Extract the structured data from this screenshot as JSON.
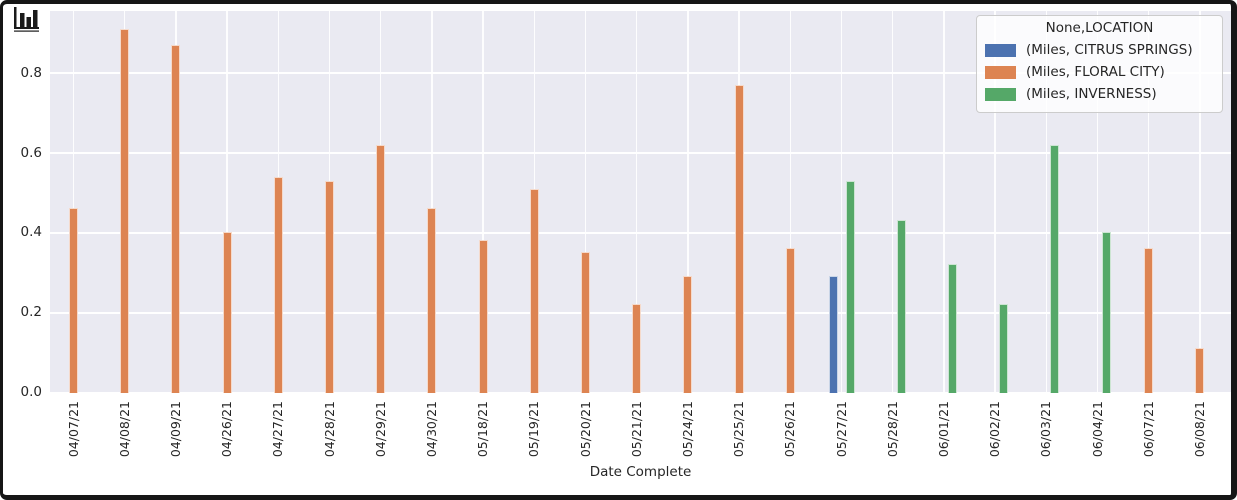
{
  "ui": {
    "top_left_icon": "bar-chart-icon",
    "frame_color": "#161616",
    "plot_bg": "#EAEAF2",
    "grid_color": "#FFFFFF",
    "tick_text_color": "#262626"
  },
  "chart_data": {
    "type": "bar",
    "title": "",
    "xlabel": "Date Complete",
    "ylabel": "",
    "ylim": [
      0,
      0.955
    ],
    "yticks": [
      0,
      0.2,
      0.4,
      0.6,
      0.8
    ],
    "ytick_labels": [
      "0.0",
      "0.2",
      "0.4",
      "0.6",
      "0.8"
    ],
    "grid": true,
    "legend": {
      "title": "None,LOCATION",
      "position": "upper right"
    },
    "categories": [
      "04/07/21",
      "04/08/21",
      "04/09/21",
      "04/26/21",
      "04/27/21",
      "04/28/21",
      "04/29/21",
      "04/30/21",
      "05/18/21",
      "05/19/21",
      "05/20/21",
      "05/21/21",
      "05/24/21",
      "05/25/21",
      "05/26/21",
      "05/27/21",
      "05/28/21",
      "06/01/21",
      "06/02/21",
      "06/03/21",
      "06/04/21",
      "06/07/21",
      "06/08/21"
    ],
    "series": [
      {
        "name": "(Miles, CITRUS SPRINGS)",
        "color": "#4C72B0",
        "values": [
          null,
          null,
          null,
          null,
          null,
          null,
          null,
          null,
          null,
          null,
          null,
          null,
          null,
          null,
          null,
          0.29,
          null,
          null,
          null,
          null,
          null,
          null,
          null
        ]
      },
      {
        "name": "(Miles, FLORAL CITY)",
        "color": "#DD8452",
        "values": [
          0.46,
          0.91,
          0.87,
          0.4,
          0.54,
          0.53,
          0.62,
          0.46,
          0.38,
          0.51,
          0.35,
          0.22,
          0.29,
          0.77,
          0.36,
          null,
          null,
          null,
          null,
          null,
          null,
          0.36,
          0.11
        ]
      },
      {
        "name": "(Miles, INVERNESS)",
        "color": "#55A868",
        "values": [
          null,
          null,
          null,
          null,
          null,
          null,
          null,
          null,
          null,
          null,
          null,
          null,
          null,
          null,
          null,
          0.53,
          0.43,
          0.32,
          0.22,
          0.62,
          0.4,
          null,
          null
        ]
      }
    ]
  }
}
